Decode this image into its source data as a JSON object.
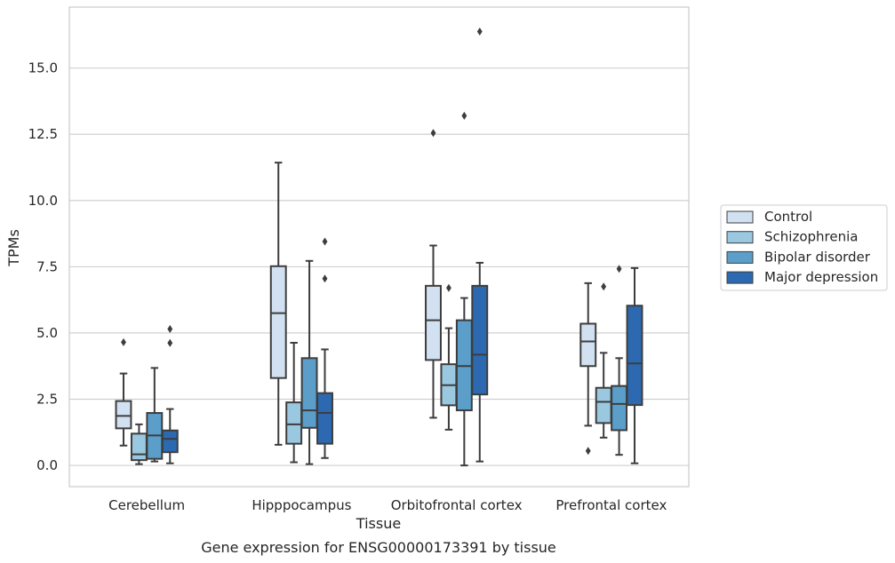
{
  "chart_data": {
    "type": "box",
    "title": "",
    "caption": "Gene expression for ENSG00000173391 by tissue",
    "xlabel": "Tissue",
    "ylabel": "TPMs",
    "ylim": [
      -0.8,
      17.3
    ],
    "yticks": [
      "0.0",
      "2.5",
      "5.0",
      "7.5",
      "10.0",
      "12.5",
      "15.0"
    ],
    "grid": "horizontal",
    "legend_position": "right",
    "categories": [
      "Cerebellum",
      "Hipppocampus",
      "Orbitofrontal cortex",
      "Prefrontal cortex"
    ],
    "series": [
      {
        "name": "Control",
        "color": "#d2e1f1",
        "boxes": [
          {
            "whislo": 0.75,
            "q1": 1.4,
            "med": 1.87,
            "q3": 2.43,
            "whishi": 3.47,
            "fliers": [
              4.65
            ]
          },
          {
            "whislo": 0.78,
            "q1": 3.3,
            "med": 5.75,
            "q3": 7.52,
            "whishi": 11.43,
            "fliers": []
          },
          {
            "whislo": 1.8,
            "q1": 3.98,
            "med": 5.48,
            "q3": 6.78,
            "whishi": 8.3,
            "fliers": [
              12.55
            ]
          },
          {
            "whislo": 1.5,
            "q1": 3.75,
            "med": 4.68,
            "q3": 5.35,
            "whishi": 6.88,
            "fliers": [
              0.55
            ]
          }
        ]
      },
      {
        "name": "Schizophrenia",
        "color": "#9ac8e0",
        "boxes": [
          {
            "whislo": 0.05,
            "q1": 0.2,
            "med": 0.42,
            "q3": 1.2,
            "whishi": 1.55,
            "fliers": []
          },
          {
            "whislo": 0.12,
            "q1": 0.82,
            "med": 1.55,
            "q3": 2.38,
            "whishi": 4.63,
            "fliers": []
          },
          {
            "whislo": 1.35,
            "q1": 2.27,
            "med": 3.03,
            "q3": 3.82,
            "whishi": 5.18,
            "fliers": [
              6.7
            ]
          },
          {
            "whislo": 1.05,
            "q1": 1.6,
            "med": 2.4,
            "q3": 2.93,
            "whishi": 4.25,
            "fliers": [
              6.75
            ]
          }
        ]
      },
      {
        "name": "Bipolar disorder",
        "color": "#5a9ec9",
        "boxes": [
          {
            "whislo": 0.15,
            "q1": 0.25,
            "med": 1.13,
            "q3": 1.98,
            "whishi": 3.68,
            "fliers": []
          },
          {
            "whislo": 0.05,
            "q1": 1.42,
            "med": 2.08,
            "q3": 4.05,
            "whishi": 7.72,
            "fliers": []
          },
          {
            "whislo": 0.0,
            "q1": 2.08,
            "med": 3.75,
            "q3": 5.48,
            "whishi": 6.32,
            "fliers": [
              13.2
            ]
          },
          {
            "whislo": 0.4,
            "q1": 1.33,
            "med": 2.32,
            "q3": 3.0,
            "whishi": 4.05,
            "fliers": [
              7.42
            ]
          }
        ]
      },
      {
        "name": "Major depression",
        "color": "#2c69b0",
        "boxes": [
          {
            "whislo": 0.08,
            "q1": 0.5,
            "med": 1.0,
            "q3": 1.32,
            "whishi": 2.13,
            "fliers": [
              4.62,
              5.15
            ]
          },
          {
            "whislo": 0.28,
            "q1": 0.82,
            "med": 1.98,
            "q3": 2.73,
            "whishi": 4.38,
            "fliers": [
              7.05,
              8.45
            ]
          },
          {
            "whislo": 0.15,
            "q1": 2.68,
            "med": 4.18,
            "q3": 6.78,
            "whishi": 7.65,
            "fliers": [
              16.38
            ]
          },
          {
            "whislo": 0.08,
            "q1": 2.28,
            "med": 3.85,
            "q3": 6.03,
            "whishi": 7.45,
            "fliers": []
          }
        ]
      }
    ]
  }
}
